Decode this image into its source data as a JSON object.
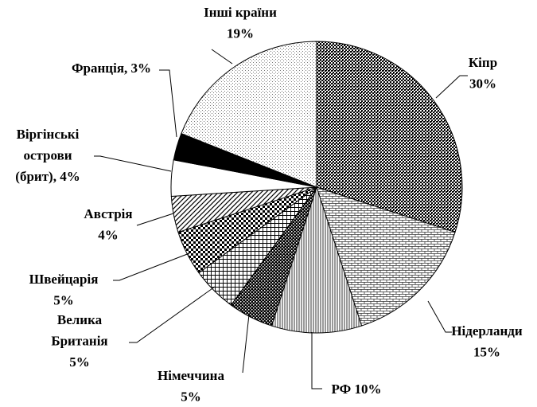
{
  "chart_data": {
    "type": "pie",
    "labels": [
      [
        "Кіпр",
        "30%"
      ],
      [
        "Нідерланди",
        "15%"
      ],
      [
        "РФ 10%"
      ],
      [
        "Німеччина",
        "5%"
      ],
      [
        "Велика",
        "Британія",
        "5%"
      ],
      [
        "Швейцарія",
        "5%"
      ],
      [
        "Австрія",
        "4%"
      ],
      [
        "Віргінські",
        "острови",
        "(брит), 4%"
      ],
      [
        "Франція, 3%"
      ],
      [
        "Інші країни",
        "19%"
      ]
    ],
    "values": [
      30,
      15,
      10,
      5,
      5,
      5,
      4,
      4,
      3,
      19
    ],
    "patterns": [
      "fine-check",
      "brick",
      "vertical",
      "dark-check",
      "grid",
      "big-check",
      "diagonal",
      "white",
      "black",
      "dots"
    ]
  }
}
